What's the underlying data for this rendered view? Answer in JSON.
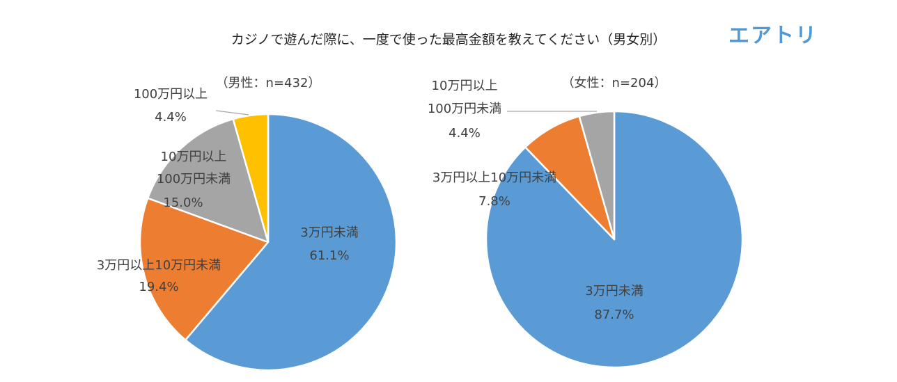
{
  "title": "カジノで遊んだ際に、一度で使った最高金額を教えてください（男女別）",
  "logo": "エアトリ",
  "chart_data": [
    {
      "type": "pie",
      "subtitle": "（男性：n=432）",
      "slices": [
        {
          "label": "3万円未満",
          "value": 61.1,
          "display": "61.1%",
          "color": "#5b9bd5"
        },
        {
          "label": "3万円以上10万円未満",
          "value": 19.4,
          "display": "19.4%",
          "color": "#ed7d31"
        },
        {
          "label": "10万円以上100万円未満",
          "value": 15.0,
          "display": "15.0%",
          "color": "#a5a5a5"
        },
        {
          "label": "100万円以上",
          "value": 4.4,
          "display": "4.4%",
          "color": "#ffc000"
        }
      ]
    },
    {
      "type": "pie",
      "subtitle": "（女性：n=204）",
      "slices": [
        {
          "label": "3万円未満",
          "value": 87.7,
          "display": "87.7%",
          "color": "#5b9bd5"
        },
        {
          "label": "3万円以上10万円未満",
          "value": 7.8,
          "display": "7.8%",
          "color": "#ed7d31"
        },
        {
          "label": "10万円以上100万円未満",
          "value": 4.4,
          "display": "4.4%",
          "color": "#a5a5a5"
        }
      ]
    }
  ]
}
